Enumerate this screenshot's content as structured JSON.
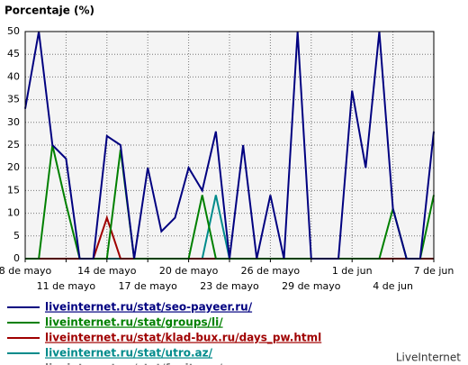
{
  "chart_data": {
    "type": "line",
    "title": "Porcentaje (%)",
    "categories": [
      "8 de mayo",
      null,
      null,
      "11 de mayo",
      null,
      null,
      "14 de mayo",
      null,
      null,
      "17 de mayo",
      null,
      null,
      "20 de mayo",
      null,
      null,
      "23 de mayo",
      null,
      null,
      "26 de mayo",
      null,
      null,
      "29 de mayo",
      null,
      null,
      "1 de jun",
      null,
      null,
      "4 de jun",
      null,
      null,
      "7 de jun"
    ],
    "ylim": [
      0,
      50
    ],
    "yticks": [
      0,
      5,
      10,
      15,
      20,
      25,
      30,
      35,
      40,
      45,
      50
    ],
    "grid": true,
    "series": [
      {
        "name": "liveinternet.ru/stat/seo-payeer.ru/",
        "color": "#000080",
        "values": [
          33,
          50,
          25,
          22,
          0,
          0,
          27,
          25,
          0,
          20,
          6,
          9,
          20,
          15,
          28,
          0,
          25,
          0,
          14,
          0,
          50,
          0,
          0,
          0,
          37,
          20,
          50,
          11,
          0,
          0,
          28
        ]
      },
      {
        "name": "liveinternet.ru/stat/groups/li/",
        "color": "#008000",
        "values": [
          0,
          0,
          25,
          12,
          0,
          0,
          0,
          24,
          0,
          0,
          0,
          0,
          0,
          14,
          0,
          0,
          0,
          0,
          0,
          0,
          0,
          0,
          0,
          0,
          0,
          0,
          0,
          11,
          0,
          0,
          14
        ]
      },
      {
        "name": "liveinternet.ru/stat/klad-bux.ru/days_pw.html",
        "color": "#a00000",
        "values": [
          0,
          0,
          0,
          0,
          0,
          0,
          9,
          0,
          0,
          0,
          0,
          0,
          0,
          0,
          0,
          0,
          0,
          0,
          0,
          0,
          0,
          0,
          0,
          0,
          0,
          0,
          0,
          0,
          0,
          0,
          0
        ]
      },
      {
        "name": "liveinternet.ru/stat/utro.az/",
        "color": "#008b8b",
        "values": [
          0,
          0,
          0,
          0,
          0,
          0,
          0,
          0,
          0,
          0,
          0,
          0,
          0,
          0,
          14,
          0,
          0,
          0,
          0,
          0,
          0,
          0,
          0,
          0,
          0,
          0,
          0,
          0,
          0,
          0,
          0
        ]
      },
      {
        "name": "liveinternet.ru/stat/fapit.org/",
        "color": "#808080",
        "values": [
          0,
          0,
          0,
          0,
          0,
          0,
          0,
          0,
          0,
          0,
          0,
          0,
          0,
          0,
          0,
          0,
          0,
          0,
          0,
          0,
          0,
          0,
          0,
          0,
          0,
          0,
          0,
          0,
          0,
          0,
          0
        ]
      }
    ],
    "credit": "LiveInternet"
  }
}
